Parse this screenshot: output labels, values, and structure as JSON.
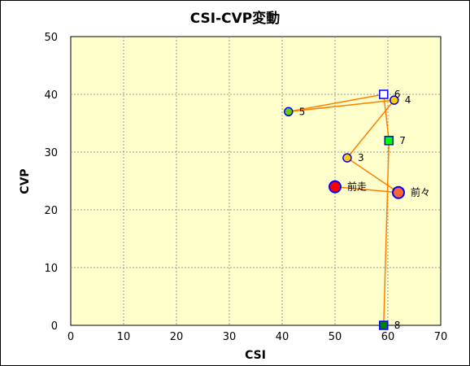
{
  "chart_data": {
    "type": "scatter",
    "title": "CSI-CVP変動",
    "xlabel": "CSI",
    "ylabel": "CVP",
    "xlim": [
      0,
      70
    ],
    "ylim": [
      0,
      50
    ],
    "x_ticks": [
      "0",
      "10",
      "20",
      "30",
      "40",
      "50",
      "60",
      "70"
    ],
    "y_ticks": [
      "0",
      "10",
      "20",
      "30",
      "40",
      "50"
    ],
    "grid": true,
    "plot_background": "#ffffcc",
    "line_color": "#ff8000",
    "points": [
      {
        "label": "前走",
        "x": 50,
        "y": 24,
        "marker": "circle-large",
        "fill": "#ff0000",
        "stroke": "#0000ff"
      },
      {
        "label": "前々",
        "x": 62,
        "y": 23,
        "marker": "circle-large",
        "fill": "#ff6633",
        "stroke": "#0000ff"
      },
      {
        "label": "3",
        "x": 52.3,
        "y": 29,
        "marker": "circle",
        "fill": "#ffcc00",
        "stroke": "#0000ff"
      },
      {
        "label": "4",
        "x": 61.2,
        "y": 39,
        "marker": "circle",
        "fill": "#ffcc00",
        "stroke": "#0000ff"
      },
      {
        "label": "5",
        "x": 41.2,
        "y": 37,
        "marker": "circle",
        "fill": "#66cc00",
        "stroke": "#0000ff"
      },
      {
        "label": "6",
        "x": 59.2,
        "y": 40,
        "marker": "square",
        "fill": "#ffffff",
        "stroke": "#0000ff"
      },
      {
        "label": "7",
        "x": 60.2,
        "y": 32,
        "marker": "square",
        "fill": "#00ff00",
        "stroke": "#0000ff"
      },
      {
        "label": "8",
        "x": 59.2,
        "y": 0,
        "marker": "square",
        "fill": "#008000",
        "stroke": "#0000ff"
      }
    ]
  }
}
